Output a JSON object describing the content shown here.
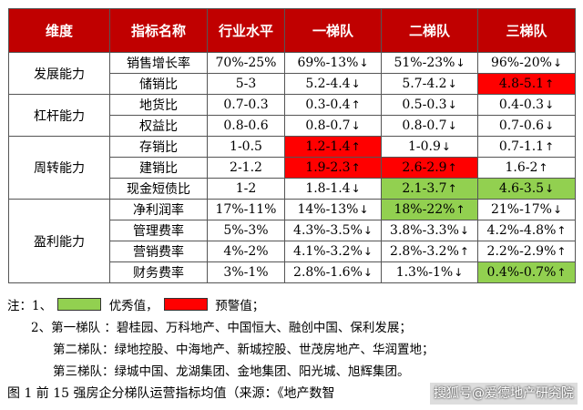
{
  "table": {
    "headers": [
      "维度",
      "指标名称",
      "行业水平",
      "一梯队",
      "二梯队",
      "三梯队"
    ],
    "groups": [
      {
        "dimension": "发展能力",
        "rows": [
          {
            "indicator": "销售增长率",
            "industry": "70%-25%",
            "tier1": {
              "text": "69%-13%",
              "arrow": "↓",
              "hl": ""
            },
            "tier2": {
              "text": "51%-23%",
              "arrow": "↓",
              "hl": ""
            },
            "tier3": {
              "text": "96%-20%",
              "arrow": "↓",
              "hl": ""
            }
          },
          {
            "indicator": "储销比",
            "industry": "5-3",
            "tier1": {
              "text": "5.2-4.4",
              "arrow": "↓",
              "hl": ""
            },
            "tier2": {
              "text": "5.7-4.2",
              "arrow": "↓",
              "hl": ""
            },
            "tier3": {
              "text": "4.8-5.1",
              "arrow": "↑",
              "hl": "red"
            }
          }
        ]
      },
      {
        "dimension": "杠杆能力",
        "rows": [
          {
            "indicator": "地货比",
            "industry": "0.7-0.3",
            "tier1": {
              "text": "0.3-0.4",
              "arrow": "↑",
              "hl": ""
            },
            "tier2": {
              "text": "0.5-0.3",
              "arrow": "↓",
              "hl": ""
            },
            "tier3": {
              "text": "0.4-0.3",
              "arrow": "↓",
              "hl": ""
            }
          },
          {
            "indicator": "权益比",
            "industry": "0.8-0.6",
            "tier1": {
              "text": "0.8-0.7",
              "arrow": "↓",
              "hl": ""
            },
            "tier2": {
              "text": "0.8-0.7",
              "arrow": "↓",
              "hl": ""
            },
            "tier3": {
              "text": "0.7-0.6",
              "arrow": "↓",
              "hl": ""
            }
          }
        ]
      },
      {
        "dimension": "周转能力",
        "rows": [
          {
            "indicator": "存销比",
            "industry": "1-0.5",
            "tier1": {
              "text": "1.2-1.4",
              "arrow": "↑",
              "hl": "red"
            },
            "tier2": {
              "text": "1-0.9",
              "arrow": "↓",
              "hl": ""
            },
            "tier3": {
              "text": "0.7-1.1",
              "arrow": "↑",
              "hl": ""
            }
          },
          {
            "indicator": "建销比",
            "industry": "2-1.2",
            "tier1": {
              "text": "1.9-2.3",
              "arrow": "↑",
              "hl": "red"
            },
            "tier2": {
              "text": "2.6-2.9",
              "arrow": "↑",
              "hl": "red"
            },
            "tier3": {
              "text": "1.6-2",
              "arrow": "↑",
              "hl": ""
            }
          },
          {
            "indicator": "现金短债比",
            "industry": "1-2",
            "tier1": {
              "text": "1.8-1.4",
              "arrow": "↓",
              "hl": ""
            },
            "tier2": {
              "text": "2.1-3.7",
              "arrow": "↑",
              "hl": "green"
            },
            "tier3": {
              "text": "4.6-3.5",
              "arrow": "↓",
              "hl": "green"
            }
          }
        ]
      },
      {
        "dimension": "盈利能力",
        "rows": [
          {
            "indicator": "净利润率",
            "industry": "17%-11%",
            "tier1": {
              "text": "14%-13%",
              "arrow": "↓",
              "hl": ""
            },
            "tier2": {
              "text": "18%-22%",
              "arrow": "↑",
              "hl": "green"
            },
            "tier3": {
              "text": "21%-17%",
              "arrow": "↓",
              "hl": ""
            }
          },
          {
            "indicator": "管理费率",
            "industry": "5%-3%",
            "tier1": {
              "text": "4.3%-3.5%",
              "arrow": "↓",
              "hl": ""
            },
            "tier2": {
              "text": "3.8%-3.3%",
              "arrow": "↓",
              "hl": ""
            },
            "tier3": {
              "text": "4.2%-4.8%",
              "arrow": "↑",
              "hl": ""
            }
          },
          {
            "indicator": "营销费率",
            "industry": "4%-2%",
            "tier1": {
              "text": "4.1%-3.2%",
              "arrow": "↓",
              "hl": ""
            },
            "tier2": {
              "text": "2.8%-3.2%",
              "arrow": "↑",
              "hl": ""
            },
            "tier3": {
              "text": "2.2%-2.9%",
              "arrow": "↑",
              "hl": ""
            }
          },
          {
            "indicator": "财务费率",
            "industry": "3%-1%",
            "tier1": {
              "text": "2.8%-1.6%",
              "arrow": "↓",
              "hl": ""
            },
            "tier2": {
              "text": "1.3%-1%",
              "arrow": "↓",
              "hl": ""
            },
            "tier3": {
              "text": "0.4%-0.7%",
              "arrow": "↑",
              "hl": "green"
            }
          }
        ]
      }
    ]
  },
  "colors": {
    "header_bg": "#c00000",
    "warning": "#ff0000",
    "excellent": "#92d050"
  },
  "notes": {
    "note1_prefix": "注：1、",
    "excellent_label": "优秀值，",
    "warning_label": "预警值；",
    "tier1_line": "2、第一梯队 ：碧桂园、万科地产、中国恒大、融创中国、保利发展；",
    "tier2_line": "第二梯队：绿地控股、中海地产、新城控股、世茂房地产、华润置地；",
    "tier3_line": "第三梯队：绿城中国、龙湖集团、金地集团、阳光城、旭辉集团。",
    "caption": "图 1  前 15 强房企分梯队运营指标均值（来源：《地产数智",
    "watermark": "搜狐号@爱德地产研究院"
  }
}
